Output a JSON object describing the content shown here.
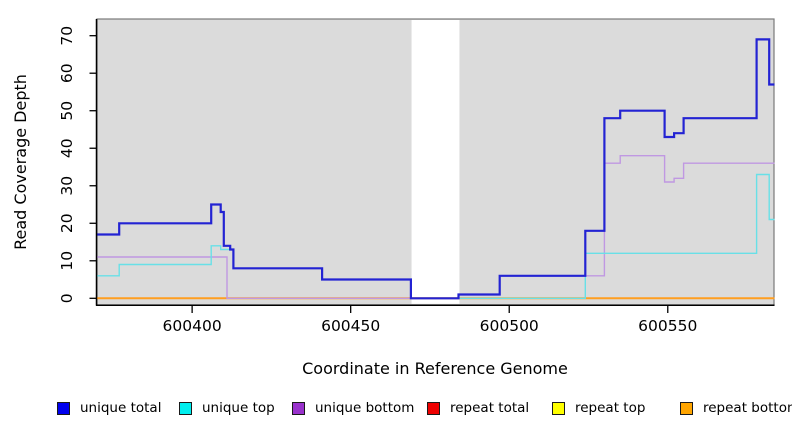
{
  "chart_data": {
    "type": "line",
    "step": "after",
    "title": "",
    "xlabel": "Coordinate in Reference Genome",
    "ylabel": "Read Coverage Depth",
    "xlim": [
      600370,
      600583.5
    ],
    "ylim": [
      -1.786,
      74.45
    ],
    "x_ticks": [
      600400,
      600450,
      600500,
      600550
    ],
    "y_ticks": [
      0,
      10,
      20,
      30,
      40,
      50,
      60,
      70
    ],
    "grid": false,
    "legend_position": "bottom",
    "panel_bg": "#DBDBDB",
    "panel_border": "#7A7A7A",
    "axis_color": "#000000",
    "page_bg": "#FFFFFF",
    "no_data_band": [
      600469.2,
      600484.3
    ],
    "draw_order": [
      "repeat total",
      "repeat top",
      "repeat bottom",
      "unique bottom",
      "unique top",
      "unique total"
    ],
    "series": [
      {
        "name": "unique total",
        "color": "#2323D3",
        "swatch": "#0000EE",
        "width": 2.2,
        "points": [
          [
            600370,
            17
          ],
          [
            600377,
            20
          ],
          [
            600406,
            25
          ],
          [
            600409,
            23
          ],
          [
            600410,
            14
          ],
          [
            600412,
            13
          ],
          [
            600413,
            8
          ],
          [
            600441,
            5
          ],
          [
            600469,
            0
          ],
          [
            600484,
            1
          ],
          [
            600497,
            6
          ],
          [
            600524,
            18
          ],
          [
            600530,
            48
          ],
          [
            600535,
            50
          ],
          [
            600549,
            43
          ],
          [
            600552,
            44
          ],
          [
            600555,
            48
          ],
          [
            600578,
            69
          ],
          [
            600582,
            57
          ],
          [
            600584,
            57
          ]
        ]
      },
      {
        "name": "unique top",
        "color": "#68E0E7",
        "swatch": "#00EEEE",
        "width": 1.4,
        "points": [
          [
            600370,
            6
          ],
          [
            600377,
            9
          ],
          [
            600406,
            14
          ],
          [
            600409,
            13
          ],
          [
            600413,
            8
          ],
          [
            600441,
            5
          ],
          [
            600469,
            0
          ],
          [
            600524,
            12
          ],
          [
            600578,
            33
          ],
          [
            600582,
            21
          ],
          [
            600584,
            21
          ]
        ]
      },
      {
        "name": "unique bottom",
        "color": "#C098E2",
        "swatch": "#9932CC",
        "width": 1.4,
        "points": [
          [
            600370,
            11
          ],
          [
            600411,
            0
          ],
          [
            600484,
            1
          ],
          [
            600497,
            6
          ],
          [
            600530,
            36
          ],
          [
            600535,
            38
          ],
          [
            600549,
            31
          ],
          [
            600552,
            32
          ],
          [
            600555,
            36
          ],
          [
            600584,
            36
          ]
        ]
      },
      {
        "name": "repeat total",
        "color": "#E84058",
        "swatch": "#EE0000",
        "width": 1.4,
        "points": [
          [
            600370,
            0
          ],
          [
            600584,
            0
          ]
        ]
      },
      {
        "name": "repeat top",
        "color": "#FFFF00",
        "swatch": "#FFFF00",
        "width": 1.4,
        "points": [
          [
            600370,
            0
          ],
          [
            600584,
            0
          ]
        ]
      },
      {
        "name": "repeat bottom",
        "color": "#FF9E20",
        "swatch": "#FFA500",
        "width": 2.0,
        "points": [
          [
            600370,
            0
          ],
          [
            600584,
            0
          ]
        ]
      }
    ]
  }
}
